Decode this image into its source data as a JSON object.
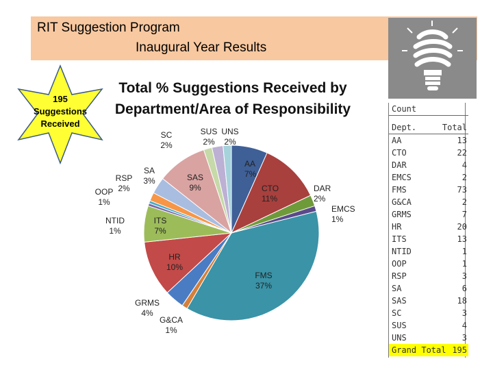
{
  "banner": {
    "line1": "RIT Suggestion Program",
    "line2": "Inaugural Year Results"
  },
  "star": {
    "line1": "195",
    "line2": "Suggestions",
    "line3": "Received",
    "color": "#ffff33"
  },
  "icons": {
    "bulb": "lightbulb-icon"
  },
  "chart_data": {
    "type": "pie",
    "title_line1": "Total % Suggestions Received by",
    "title_line2": "Department/Area of Responsibility",
    "slices": [
      {
        "label": "AA",
        "percent": "7%",
        "value": 13,
        "color": "#3f5f97"
      },
      {
        "label": "CTO",
        "percent": "11%",
        "value": 22,
        "color": "#a8403e"
      },
      {
        "label": "DAR",
        "percent": "2%",
        "value": 4,
        "color": "#6f9a3a"
      },
      {
        "label": "EMCS",
        "percent": "1%",
        "value": 2,
        "color": "#5a4a8a"
      },
      {
        "label": "FMS",
        "percent": "37%",
        "value": 73,
        "color": "#3a93a7"
      },
      {
        "label": "G&CA",
        "percent": "1%",
        "value": 2,
        "color": "#d4803a"
      },
      {
        "label": "GRMS",
        "percent": "4%",
        "value": 7,
        "color": "#4a7cc4"
      },
      {
        "label": "HR",
        "percent": "10%",
        "value": 20,
        "color": "#c24a48"
      },
      {
        "label": "ITS",
        "percent": "7%",
        "value": 13,
        "color": "#9cbc5a"
      },
      {
        "label": "NTID",
        "percent": "1%",
        "value": 1,
        "color": "#7b68a8"
      },
      {
        "label": "OOP",
        "percent": "1%",
        "value": 1,
        "color": "#4bacc6"
      },
      {
        "label": "RSP",
        "percent": "2%",
        "value": 3,
        "color": "#f79646"
      },
      {
        "label": "SA",
        "percent": "3%",
        "value": 6,
        "color": "#a8bde0"
      },
      {
        "label": "SAS",
        "percent": "9%",
        "value": 18,
        "color": "#d9a3a2"
      },
      {
        "label": "SC",
        "percent": "2%",
        "value": 3,
        "color": "#c6d9a8"
      },
      {
        "label": "SUS",
        "percent": "2%",
        "value": 4,
        "color": "#bcb0d4"
      },
      {
        "label": "UNS",
        "percent": "2%",
        "value": 3,
        "color": "#a6d2dc"
      }
    ]
  },
  "table": {
    "header": "Count",
    "col_dept": "Dept.",
    "col_total": "Total",
    "rows": [
      {
        "dept": "AA",
        "total": "13"
      },
      {
        "dept": "CTO",
        "total": "22"
      },
      {
        "dept": "DAR",
        "total": "4"
      },
      {
        "dept": "EMCS",
        "total": "2"
      },
      {
        "dept": "FMS",
        "total": "73"
      },
      {
        "dept": "G&CA",
        "total": "2"
      },
      {
        "dept": "GRMS",
        "total": "7"
      },
      {
        "dept": "HR",
        "total": "20"
      },
      {
        "dept": "ITS",
        "total": "13"
      },
      {
        "dept": "NTID",
        "total": "1"
      },
      {
        "dept": "OOP",
        "total": "1"
      },
      {
        "dept": "RSP",
        "total": "3"
      },
      {
        "dept": "SA",
        "total": "6"
      },
      {
        "dept": "SAS",
        "total": "18"
      },
      {
        "dept": "SC",
        "total": "3"
      },
      {
        "dept": "SUS",
        "total": "4"
      },
      {
        "dept": "UNS",
        "total": "3"
      }
    ],
    "grand_label": "Grand Total",
    "grand_value": "195"
  }
}
